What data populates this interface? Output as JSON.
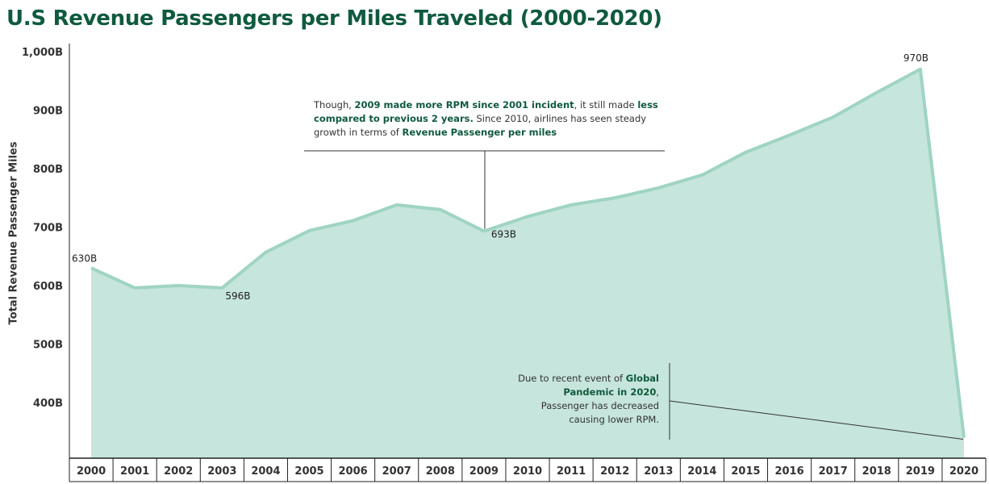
{
  "chart_data": {
    "type": "area",
    "title": "U.S Revenue Passengers per Miles Traveled (2000-2020)",
    "ylabel": "Total Revenue Passenger Miles",
    "xlabel": "",
    "x": [
      "2000",
      "2001",
      "2002",
      "2003",
      "2004",
      "2005",
      "2006",
      "2007",
      "2008",
      "2009",
      "2010",
      "2011",
      "2012",
      "2013",
      "2014",
      "2015",
      "2016",
      "2017",
      "2018",
      "2019",
      "2020"
    ],
    "values": [
      630,
      596,
      600,
      596,
      657,
      694,
      711,
      738,
      730,
      693,
      718,
      738,
      750,
      767,
      789,
      828,
      857,
      888,
      930,
      970,
      340
    ],
    "units": "B",
    "ylim": [
      300,
      1000
    ],
    "yticks": [
      400,
      500,
      600,
      700,
      800,
      900,
      1000
    ],
    "ytick_labels": [
      "400B",
      "500B",
      "600B",
      "700B",
      "800B",
      "900B",
      "1,000B"
    ],
    "data_labels": [
      {
        "index": 0,
        "text": "630B"
      },
      {
        "index": 3,
        "text": "596B"
      },
      {
        "index": 9,
        "text": "693B"
      },
      {
        "index": 19,
        "text": "970B"
      }
    ],
    "colors": {
      "area_fill": "#c6e5dc",
      "area_line": "#9fd4c2",
      "title": "#0f5a3e",
      "highlight": "#0f5a3e"
    },
    "grid": false,
    "annotations": [
      {
        "parts": [
          {
            "text": "Though, ",
            "bold": false
          },
          {
            "text": "2009 made more RPM since 2001 incident",
            "bold": true
          },
          {
            "text": ", it still made ",
            "bold": false
          },
          {
            "text": "less compared to previous 2 years.",
            "bold": true
          },
          {
            "text": " Since 2010, airlines has seen steady growth in terms of ",
            "bold": false
          },
          {
            "text": "Revenue Passenger per miles",
            "bold": true
          }
        ]
      },
      {
        "parts": [
          {
            "text": "Due to recent event of ",
            "bold": false
          },
          {
            "text": "Global Pandemic in 2020",
            "bold": true
          },
          {
            "text": ", Passenger has decreased causing lower RPM.",
            "bold": false
          }
        ]
      }
    ]
  }
}
